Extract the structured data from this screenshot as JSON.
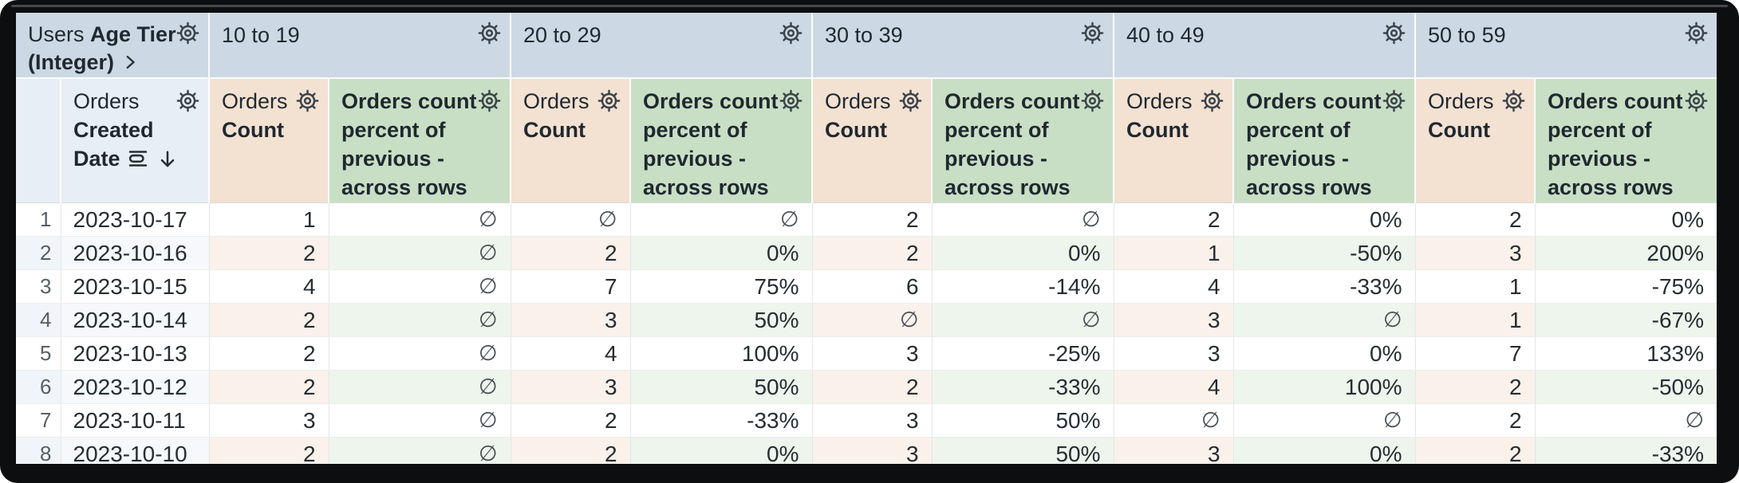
{
  "colors": {
    "frame_bg": "#0d0e10",
    "pivot_header_bg": "#ccd9e4",
    "row_dim_header_bg": "#e8eef6",
    "count_header_bg": "#f3e1d2",
    "percent_header_bg": "#c9dfc5",
    "even_index_bg": "#f1f5fa",
    "even_date_bg": "#f6f8fb",
    "even_count_bg": "#f9f1ea",
    "even_percent_bg": "#eef5ec",
    "header_text": "#1f2830",
    "data_text": "#262d33",
    "null_text": "#454d54",
    "row_index_text": "#555f66"
  },
  "pivot": {
    "view_label": "Users",
    "field_label": "Age Tier (Integer)",
    "tiers": [
      "10 to 19",
      "20 to 29",
      "30 to 39",
      "40 to 49",
      "50 to 59"
    ]
  },
  "row_dimension": {
    "view_label": "Orders",
    "field_label": "Created Date",
    "sort_direction": "descending"
  },
  "measures": {
    "count_view_label": "Orders",
    "count_field_label": "Count",
    "percent_label": "Orders count percent of previous - across rows"
  },
  "null_symbol": "∅",
  "table": {
    "rows": [
      {
        "index": "1",
        "date": "2023-10-17",
        "values": [
          "1",
          "∅",
          "∅",
          "∅",
          "2",
          "∅",
          "2",
          "0%",
          "2",
          "0%"
        ]
      },
      {
        "index": "2",
        "date": "2023-10-16",
        "values": [
          "2",
          "∅",
          "2",
          "0%",
          "2",
          "0%",
          "1",
          "-50%",
          "3",
          "200%"
        ]
      },
      {
        "index": "3",
        "date": "2023-10-15",
        "values": [
          "4",
          "∅",
          "7",
          "75%",
          "6",
          "-14%",
          "4",
          "-33%",
          "1",
          "-75%"
        ]
      },
      {
        "index": "4",
        "date": "2023-10-14",
        "values": [
          "2",
          "∅",
          "3",
          "50%",
          "∅",
          "∅",
          "3",
          "∅",
          "1",
          "-67%"
        ]
      },
      {
        "index": "5",
        "date": "2023-10-13",
        "values": [
          "2",
          "∅",
          "4",
          "100%",
          "3",
          "-25%",
          "3",
          "0%",
          "7",
          "133%"
        ]
      },
      {
        "index": "6",
        "date": "2023-10-12",
        "values": [
          "2",
          "∅",
          "3",
          "50%",
          "2",
          "-33%",
          "4",
          "100%",
          "2",
          "-50%"
        ]
      },
      {
        "index": "7",
        "date": "2023-10-11",
        "values": [
          "3",
          "∅",
          "2",
          "-33%",
          "3",
          "50%",
          "∅",
          "∅",
          "2",
          "∅"
        ]
      },
      {
        "index": "8",
        "date": "2023-10-10",
        "values": [
          "2",
          "∅",
          "2",
          "0%",
          "3",
          "50%",
          "3",
          "0%",
          "2",
          "-33%"
        ]
      }
    ]
  }
}
